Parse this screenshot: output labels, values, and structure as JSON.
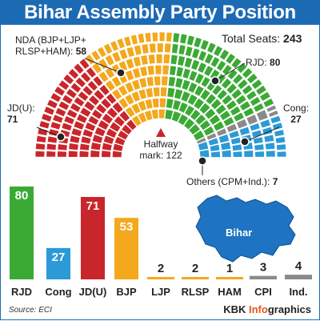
{
  "header": {
    "title": "Bihar Assembly Party Position"
  },
  "seat_chart": {
    "total_label": "Total Seats:",
    "total_value": "243",
    "halfway_label_1": "Halfway",
    "halfway_label_2": "mark: 122",
    "callouts": {
      "nda_line1": "NDA (BJP+LJP+",
      "nda_line2": "RLSP+HAM):",
      "nda_value": "58",
      "jdu_line1": "JD(U):",
      "jdu_value": "71",
      "rjd_label": "RJD:",
      "rjd_value": "80",
      "cong_line1": "Cong:",
      "cong_value": "27",
      "others_label": "Others (CPM+Ind.):",
      "others_value": "7"
    }
  },
  "map": {
    "label": "Bihar"
  },
  "colors": {
    "rjd": "#3aaa35",
    "cong": "#2b9ad6",
    "jdu": "#c8262b",
    "bjp": "#f4a81d",
    "ljp": "#f4a81d",
    "rlsp": "#f4a81d",
    "ham": "#f4a81d",
    "cpi": "#8a8a8a",
    "ind": "#8a8a8a",
    "title_bg": "#1c6ab4",
    "map_fill": "#1e73c2"
  },
  "chart_data": [
    {
      "type": "pie",
      "title": "Bihar Assembly Party Position",
      "total": 243,
      "categories": [
        "JD(U)",
        "NDA (BJP+LJP+RLSP+HAM)",
        "RJD",
        "Others (CPM+Ind.)",
        "Cong"
      ],
      "values": [
        71,
        58,
        80,
        7,
        27
      ]
    },
    {
      "type": "bar",
      "categories": [
        "RJD",
        "Cong",
        "JD(U)",
        "BJP",
        "LJP",
        "RLSP",
        "HAM",
        "CPI",
        "Ind."
      ],
      "values": [
        80,
        27,
        71,
        53,
        2,
        2,
        1,
        3,
        4
      ],
      "value_labels": [
        "80",
        "27",
        "71",
        "53",
        "2",
        "2",
        "1",
        "3",
        "4"
      ],
      "ylim": [
        0,
        80
      ]
    }
  ],
  "footer": {
    "source": "Source: ECI",
    "credit_prefix": "KBK ",
    "credit_highlight": "Info",
    "credit_suffix": "graphics"
  }
}
